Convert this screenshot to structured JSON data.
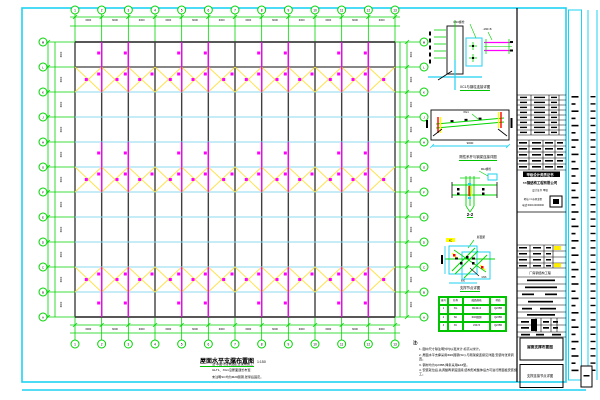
{
  "sheet": {
    "frame_color": "#1fd2f2",
    "grid_color": "#00d400",
    "column_color": "#3f3f3f",
    "purlin_color": "#8ed9f2",
    "brace_color": "#ffe34d",
    "marker_color": "#ff00ff"
  },
  "plan": {
    "title": "屋面水平支撑布置图",
    "scale": "1:150",
    "title_notes": [
      "注:本图与建筑图配合使用施工;",
      "GLT1、XG1沿屋面通长布置;",
      "未注明SC均为Φ20圆钢,张紧后固定。"
    ],
    "axis_numbers": [
      "1",
      "2",
      "3",
      "4",
      "5",
      "6",
      "7",
      "8",
      "9",
      "10",
      "11",
      "12",
      "13"
    ],
    "axis_letters": [
      "M",
      "L",
      "K",
      "J",
      "H",
      "G",
      "F",
      "E",
      "D",
      "C",
      "B",
      "A"
    ],
    "bay_dim": "6000",
    "row_dim": "6000"
  },
  "details": [
    {
      "label": "XC1与钢柱连接详图",
      "texts": [
        "M16螺栓",
        "-160×8"
      ]
    },
    {
      "label": "刚性系杆与钢梁连接详图",
      "texts": [
        "XG1",
        "9000"
      ]
    },
    {
      "label": "2-2",
      "texts": [
        "M12螺栓"
      ]
    },
    {
      "label": "支撑节点详图",
      "texts": [
        "屋面梁",
        "XC",
        "600",
        "M16"
      ]
    }
  ],
  "material_table": {
    "headers": [
      "编号",
      "名称",
      "截面规格",
      "材质"
    ],
    "rows": [
      [
        "1",
        "XG",
        "Φ140×4",
        "Q235B"
      ],
      [
        "2",
        "SC",
        "Φ20圆钢",
        "Q235B"
      ],
      [
        "3",
        "XC",
        "L50×5",
        "Q235B"
      ]
    ]
  },
  "notes": {
    "header": "注:",
    "items": [
      "图中尺寸除注明外均以毫米计,标高以米计。",
      "屋面水平支撑采用Φ20圆钢(SC),与刚架梁连接见详图,安装时张紧调直。",
      "钢材均为Q235B,焊条采用E43型。",
      "安装就位后,先调整再紧固连接,结构形成整体后方可进行屋面板安装施工。"
    ]
  },
  "title_block": {
    "band": "甲级设计资质证书",
    "firm": "××钢结构工程有限公司",
    "firm_sub1": "设计证书 甲级",
    "firm_sub2": "地址:××市开发区",
    "firm_sub3": "电话:0000-0000000",
    "project": "厂房钢结构工程",
    "box1": "屋面支撑布置图",
    "box2": "支撑连接节点详图"
  }
}
